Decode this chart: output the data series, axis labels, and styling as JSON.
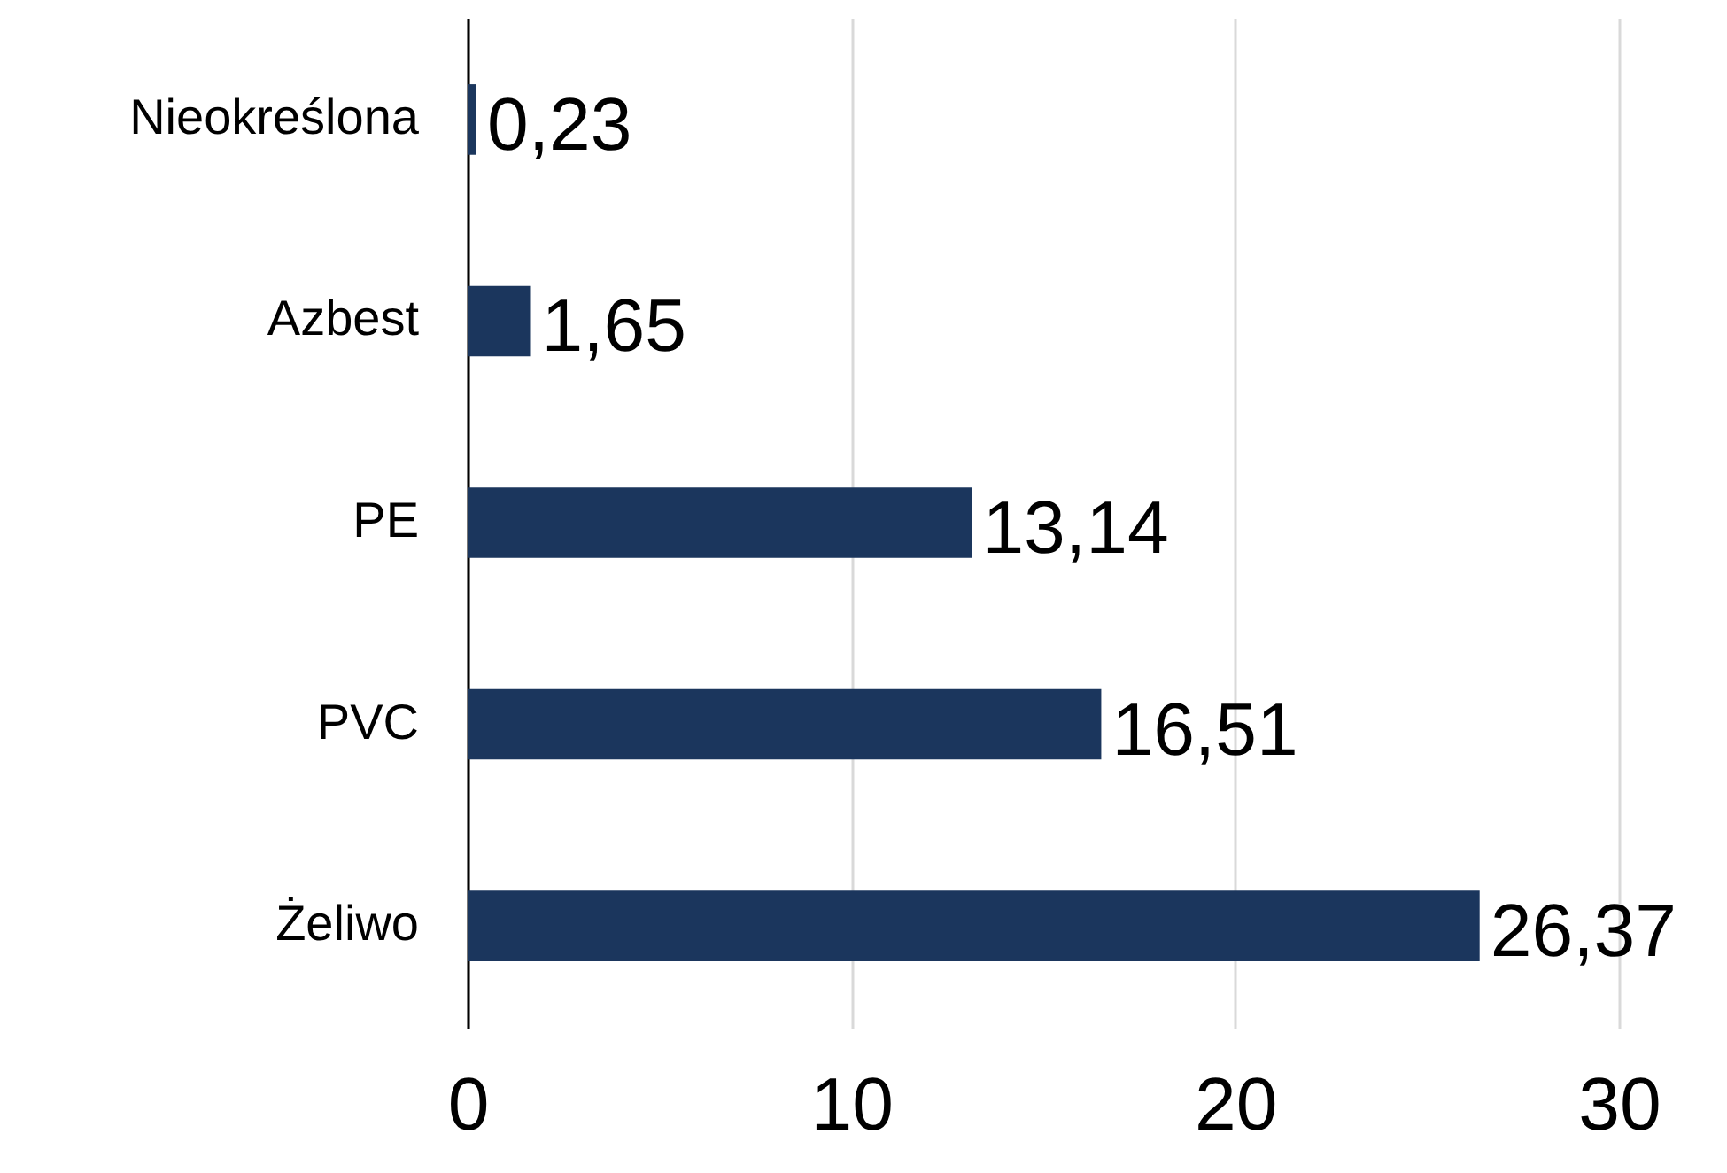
{
  "chart_data": {
    "type": "bar",
    "orientation": "horizontal",
    "categories": [
      "Nieokreślona",
      "Azbest",
      "PE",
      "PVC",
      "Żeliwo"
    ],
    "values": [
      0.23,
      1.65,
      13.14,
      16.51,
      26.37
    ],
    "value_labels": [
      "0,23",
      "1,65",
      "13,14",
      "16,51",
      "26,37"
    ],
    "color": "#1b365d",
    "xlim": [
      0,
      30
    ],
    "xticks": [
      0,
      10,
      20,
      30
    ],
    "grid": "x"
  }
}
